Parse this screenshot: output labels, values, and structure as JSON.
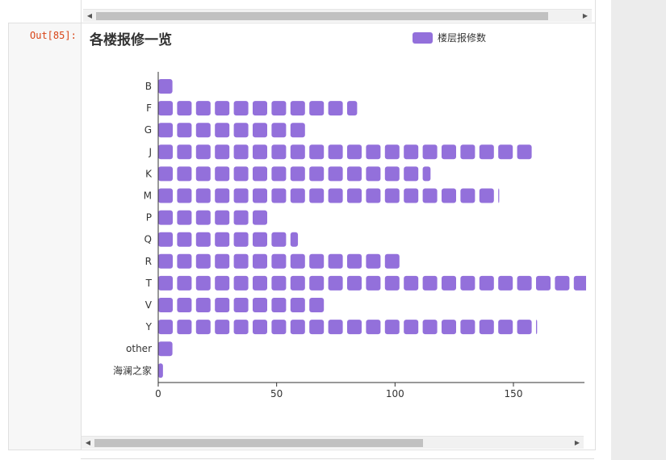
{
  "previous_cell": {
    "code_line": ""
  },
  "cell": {
    "prompt": "Out[85]:"
  },
  "chart_data": {
    "type": "bar",
    "orientation": "horizontal",
    "symbol": "roundRect",
    "title": "各楼报修一览",
    "categories": [
      "B",
      "F",
      "G",
      "J",
      "K",
      "M",
      "P",
      "Q",
      "R",
      "T",
      "V",
      "Y",
      "other",
      "海澜之家"
    ],
    "series": [
      {
        "name": "楼层报修数",
        "values": [
          6,
          84,
          63,
          159,
          115,
          144,
          47,
          59,
          103,
          190,
          71,
          160,
          6,
          2
        ]
      }
    ],
    "xlim": [
      0,
      180
    ],
    "xticks": [
      0,
      50,
      100,
      150
    ],
    "xlabel": "",
    "ylabel": "",
    "grid": false,
    "legend_position": "top",
    "color": "#9370db"
  }
}
